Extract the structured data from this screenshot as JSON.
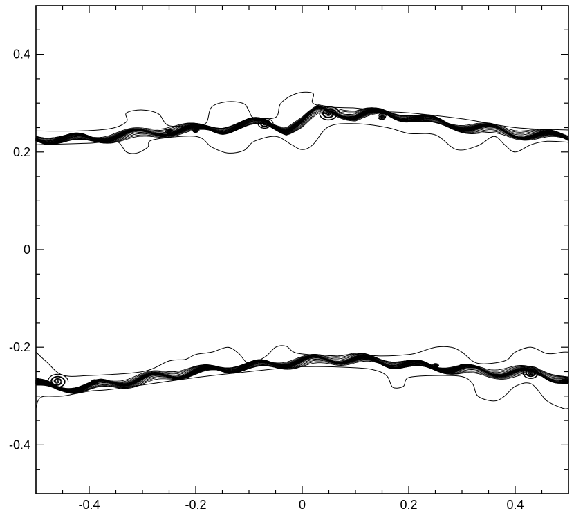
{
  "chart_data": {
    "type": "contour",
    "title": "",
    "xlabel": "",
    "ylabel": "",
    "xlim": [
      -0.5,
      0.5
    ],
    "ylim": [
      -0.5,
      0.5
    ],
    "grid": false,
    "legend": "none",
    "x_ticks": {
      "major": [
        -0.4,
        -0.2,
        0,
        0.2,
        0.4
      ],
      "major_labels": [
        "-0.4",
        "-0.2",
        "0",
        "0.2",
        "0.4"
      ],
      "minor": [
        -0.5,
        -0.45,
        -0.35,
        -0.3,
        -0.25,
        -0.15,
        -0.1,
        -0.05,
        0.05,
        0.1,
        0.15,
        0.25,
        0.3,
        0.35,
        0.45,
        0.5
      ]
    },
    "y_ticks": {
      "major": [
        -0.4,
        -0.2,
        0,
        0.2,
        0.4
      ],
      "major_labels": [
        "-0.4",
        "-0.2",
        "0",
        "0.2",
        "0.4"
      ],
      "minor": [
        -0.45,
        -0.35,
        -0.3,
        -0.25,
        -0.15,
        -0.1,
        -0.05,
        0.05,
        0.1,
        0.15,
        0.25,
        0.3,
        0.35,
        0.45
      ]
    },
    "layers": [
      {
        "id": "upper",
        "center": [
          [
            -0.5,
            0.228
          ],
          [
            -0.45,
            0.226
          ],
          [
            -0.4,
            0.229
          ],
          [
            -0.35,
            0.235
          ],
          [
            -0.3,
            0.238
          ],
          [
            -0.25,
            0.243
          ],
          [
            -0.2,
            0.244
          ],
          [
            -0.15,
            0.247
          ],
          [
            -0.1,
            0.258
          ],
          [
            -0.07,
            0.262
          ],
          [
            -0.03,
            0.25
          ],
          [
            0.0,
            0.262
          ],
          [
            0.03,
            0.285
          ],
          [
            0.06,
            0.285
          ],
          [
            0.1,
            0.272
          ],
          [
            0.15,
            0.278
          ],
          [
            0.2,
            0.272
          ],
          [
            0.25,
            0.262
          ],
          [
            0.3,
            0.255
          ],
          [
            0.35,
            0.247
          ],
          [
            0.4,
            0.238
          ],
          [
            0.45,
            0.232
          ],
          [
            0.5,
            0.228
          ]
        ],
        "thickness": 0.014,
        "wave_amplitude": 0.01,
        "wave_count": 9,
        "rollups": [
          {
            "x": -0.07,
            "y": 0.258,
            "r": 0.012
          },
          {
            "x": 0.05,
            "y": 0.278,
            "r": 0.016
          },
          {
            "x": 0.15,
            "y": 0.272,
            "r": 0.007
          },
          {
            "x": -0.25,
            "y": 0.242,
            "r": 0.006
          },
          {
            "x": -0.2,
            "y": 0.244,
            "r": 0.005
          }
        ],
        "outer_up": [
          [
            -0.5,
            0.243
          ],
          [
            -0.42,
            0.243
          ],
          [
            -0.36,
            0.248
          ],
          [
            -0.33,
            0.262
          ],
          [
            -0.33,
            0.28
          ],
          [
            -0.3,
            0.286
          ],
          [
            -0.27,
            0.278
          ],
          [
            -0.25,
            0.254
          ],
          [
            -0.2,
            0.256
          ],
          [
            -0.18,
            0.26
          ],
          [
            -0.17,
            0.292
          ],
          [
            -0.14,
            0.303
          ],
          [
            -0.11,
            0.299
          ],
          [
            -0.1,
            0.284
          ],
          [
            -0.09,
            0.27
          ],
          [
            -0.05,
            0.271
          ],
          [
            -0.04,
            0.3
          ],
          [
            -0.01,
            0.32
          ],
          [
            0.02,
            0.32
          ],
          [
            0.02,
            0.3
          ],
          [
            0.05,
            0.292
          ],
          [
            0.1,
            0.29
          ],
          [
            0.15,
            0.283
          ],
          [
            0.2,
            0.28
          ],
          [
            0.3,
            0.268
          ],
          [
            0.4,
            0.25
          ],
          [
            0.5,
            0.245
          ]
        ],
        "outer_down": [
          [
            -0.5,
            0.215
          ],
          [
            -0.4,
            0.218
          ],
          [
            -0.35,
            0.222
          ],
          [
            -0.33,
            0.2
          ],
          [
            -0.31,
            0.198
          ],
          [
            -0.29,
            0.21
          ],
          [
            -0.28,
            0.225
          ],
          [
            -0.2,
            0.232
          ],
          [
            -0.17,
            0.21
          ],
          [
            -0.14,
            0.198
          ],
          [
            -0.11,
            0.203
          ],
          [
            -0.09,
            0.222
          ],
          [
            -0.05,
            0.232
          ],
          [
            -0.02,
            0.215
          ],
          [
            0.0,
            0.205
          ],
          [
            0.02,
            0.215
          ],
          [
            0.05,
            0.252
          ],
          [
            0.1,
            0.258
          ],
          [
            0.16,
            0.25
          ],
          [
            0.2,
            0.238
          ],
          [
            0.25,
            0.235
          ],
          [
            0.29,
            0.205
          ],
          [
            0.33,
            0.213
          ],
          [
            0.36,
            0.232
          ],
          [
            0.38,
            0.215
          ],
          [
            0.4,
            0.2
          ],
          [
            0.43,
            0.215
          ],
          [
            0.46,
            0.222
          ],
          [
            0.5,
            0.22
          ]
        ]
      },
      {
        "id": "lower",
        "center": [
          [
            -0.5,
            -0.275
          ],
          [
            -0.46,
            -0.285
          ],
          [
            -0.42,
            -0.282
          ],
          [
            -0.38,
            -0.275
          ],
          [
            -0.34,
            -0.27
          ],
          [
            -0.3,
            -0.265
          ],
          [
            -0.25,
            -0.258
          ],
          [
            -0.2,
            -0.252
          ],
          [
            -0.15,
            -0.245
          ],
          [
            -0.1,
            -0.238
          ],
          [
            -0.05,
            -0.232
          ],
          [
            0.0,
            -0.228
          ],
          [
            0.05,
            -0.224
          ],
          [
            0.1,
            -0.226
          ],
          [
            0.15,
            -0.232
          ],
          [
            0.2,
            -0.236
          ],
          [
            0.25,
            -0.24
          ],
          [
            0.3,
            -0.243
          ],
          [
            0.35,
            -0.25
          ],
          [
            0.4,
            -0.252
          ],
          [
            0.45,
            -0.255
          ],
          [
            0.5,
            -0.272
          ]
        ],
        "thickness": 0.014,
        "wave_amplitude": 0.009,
        "wave_count": 10,
        "rollups": [
          {
            "x": -0.46,
            "y": -0.27,
            "r": 0.016
          },
          {
            "x": 0.43,
            "y": -0.253,
            "r": 0.014
          },
          {
            "x": -0.39,
            "y": -0.272,
            "r": 0.006
          },
          {
            "x": 0.25,
            "y": -0.238,
            "r": 0.005
          },
          {
            "x": 0.3,
            "y": -0.24,
            "r": 0.005
          }
        ],
        "outer_up": [
          [
            -0.5,
            -0.21
          ],
          [
            -0.48,
            -0.23
          ],
          [
            -0.45,
            -0.257
          ],
          [
            -0.4,
            -0.258
          ],
          [
            -0.3,
            -0.25
          ],
          [
            -0.25,
            -0.228
          ],
          [
            -0.22,
            -0.225
          ],
          [
            -0.2,
            -0.215
          ],
          [
            -0.17,
            -0.21
          ],
          [
            -0.14,
            -0.2
          ],
          [
            -0.12,
            -0.212
          ],
          [
            -0.1,
            -0.233
          ],
          [
            -0.07,
            -0.22
          ],
          [
            -0.05,
            -0.2
          ],
          [
            -0.03,
            -0.198
          ],
          [
            -0.01,
            -0.212
          ],
          [
            0.05,
            -0.217
          ],
          [
            0.1,
            -0.215
          ],
          [
            0.15,
            -0.218
          ],
          [
            0.2,
            -0.215
          ],
          [
            0.22,
            -0.21
          ],
          [
            0.25,
            -0.2
          ],
          [
            0.28,
            -0.2
          ],
          [
            0.3,
            -0.21
          ],
          [
            0.33,
            -0.233
          ],
          [
            0.38,
            -0.228
          ],
          [
            0.4,
            -0.21
          ],
          [
            0.43,
            -0.2
          ],
          [
            0.46,
            -0.213
          ],
          [
            0.49,
            -0.21
          ],
          [
            0.5,
            -0.21
          ]
        ],
        "outer_down": [
          [
            -0.5,
            -0.325
          ],
          [
            -0.49,
            -0.302
          ],
          [
            -0.45,
            -0.3
          ],
          [
            -0.4,
            -0.29
          ],
          [
            -0.35,
            -0.285
          ],
          [
            -0.2,
            -0.262
          ],
          [
            -0.1,
            -0.25
          ],
          [
            0.0,
            -0.24
          ],
          [
            0.1,
            -0.242
          ],
          [
            0.14,
            -0.248
          ],
          [
            0.16,
            -0.26
          ],
          [
            0.17,
            -0.282
          ],
          [
            0.19,
            -0.28
          ],
          [
            0.2,
            -0.262
          ],
          [
            0.25,
            -0.258
          ],
          [
            0.3,
            -0.26
          ],
          [
            0.32,
            -0.275
          ],
          [
            0.33,
            -0.3
          ],
          [
            0.36,
            -0.31
          ],
          [
            0.38,
            -0.3
          ],
          [
            0.4,
            -0.28
          ],
          [
            0.43,
            -0.275
          ],
          [
            0.46,
            -0.31
          ],
          [
            0.49,
            -0.325
          ],
          [
            0.5,
            -0.325
          ]
        ]
      }
    ]
  }
}
